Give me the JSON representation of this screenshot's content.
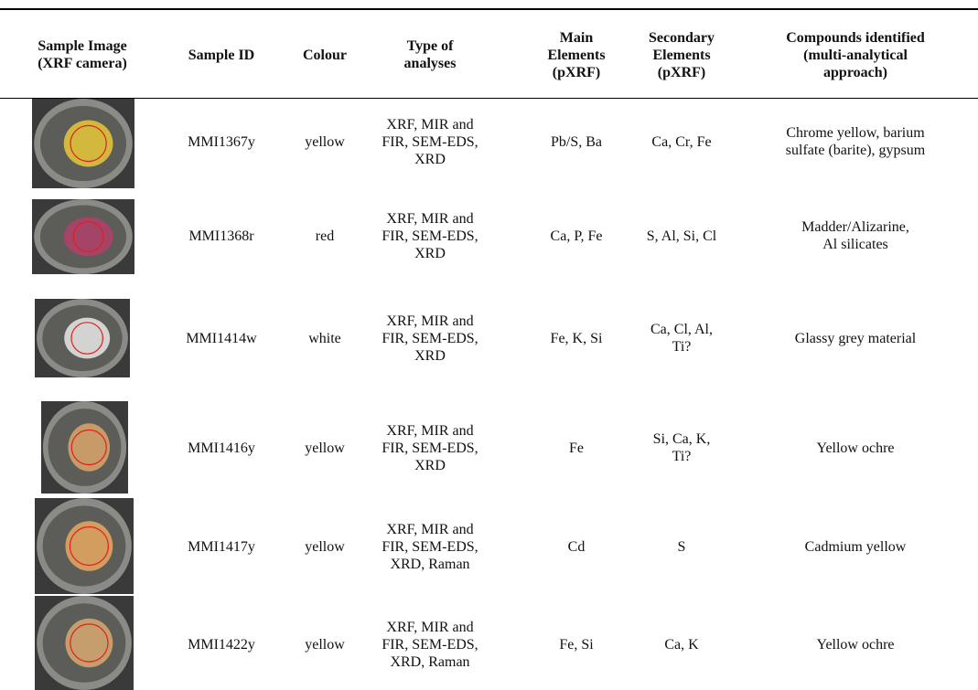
{
  "table": {
    "header": [
      [
        "Sample Image",
        "(XRF camera)"
      ],
      [
        "Sample ID"
      ],
      [
        "Colour"
      ],
      [
        "Type of",
        "analyses"
      ],
      [
        "Main",
        "Elements",
        "(pXRF)"
      ],
      [
        "Secondary",
        "Elements",
        "(pXRF)"
      ],
      [
        "Compounds identified",
        "(multi-analytical",
        "approach)"
      ]
    ],
    "rows": [
      [
        [
          "MMI1367y"
        ],
        [
          "yellow"
        ],
        [
          "XRF, MIR and",
          "FIR, SEM-EDS,",
          "XRD"
        ],
        [
          "Pb/S, Ba"
        ],
        [
          "Ca, Cr, Fe"
        ],
        [
          "Chrome yellow, barium",
          "sulfate (barite), gypsum"
        ]
      ],
      [
        [
          "MMI1368r"
        ],
        [
          "red"
        ],
        [
          "XRF, MIR and",
          "FIR, SEM-EDS,",
          "XRD"
        ],
        [
          "Ca, P, Fe"
        ],
        [
          "S, Al, Si, Cl"
        ],
        [
          "Madder/Alizarine,",
          "Al silicates"
        ]
      ],
      [
        [
          "MMI1414w"
        ],
        [
          "white"
        ],
        [
          "XRF, MIR and",
          "FIR, SEM-EDS,",
          "XRD"
        ],
        [
          "Fe, K, Si"
        ],
        [
          "Ca, Cl, Al,",
          "Ti?"
        ],
        [
          "Glassy grey material"
        ]
      ],
      [
        [
          "MMI1416y"
        ],
        [
          "yellow"
        ],
        [
          "XRF, MIR and",
          "FIR, SEM-EDS,",
          "XRD"
        ],
        [
          "Fe"
        ],
        [
          "Si, Ca, K,",
          "Ti?"
        ],
        [
          "Yellow ochre"
        ]
      ],
      [
        [
          "MMI1417y"
        ],
        [
          "yellow"
        ],
        [
          "XRF, MIR and",
          "FIR, SEM-EDS,",
          "XRD, Raman"
        ],
        [
          "Cd"
        ],
        [
          "S"
        ],
        [
          "Cadmium yellow"
        ]
      ],
      [
        [
          "MMI1422y"
        ],
        [
          "yellow"
        ],
        [
          "XRF, MIR and",
          "FIR, SEM-EDS,",
          "XRD, Raman"
        ],
        [
          "Fe, Si"
        ],
        [
          "Ca, K"
        ],
        [
          "Yellow ochre"
        ]
      ]
    ]
  }
}
